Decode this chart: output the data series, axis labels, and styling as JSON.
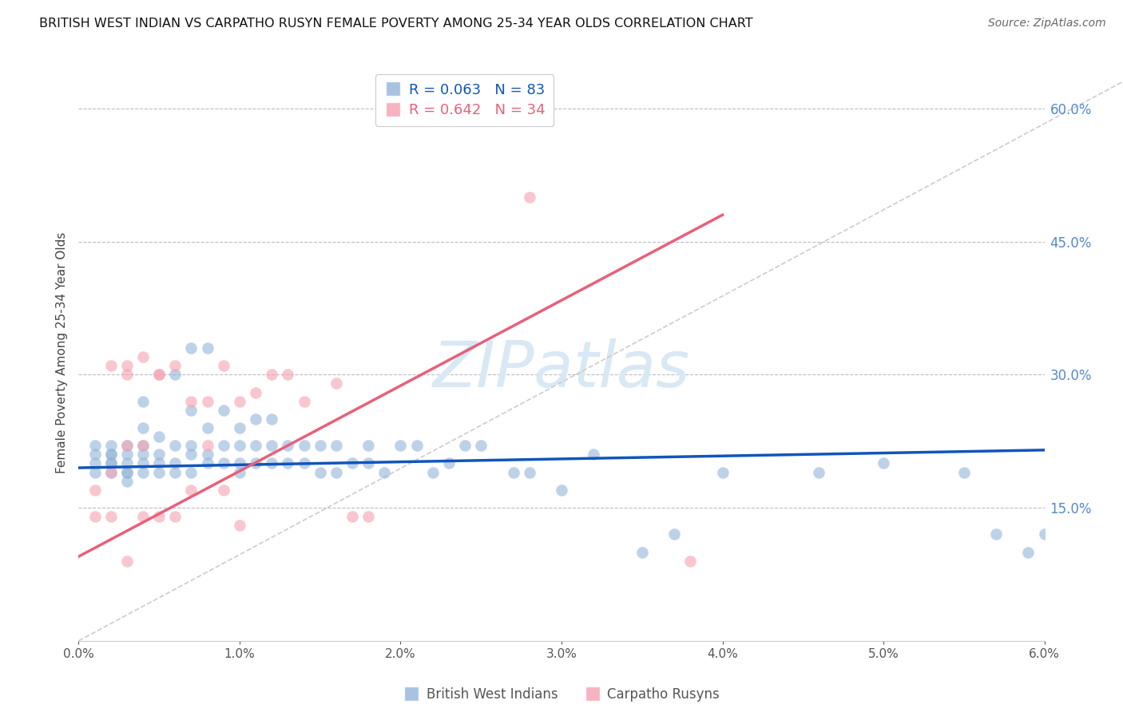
{
  "title": "BRITISH WEST INDIAN VS CARPATHO RUSYN FEMALE POVERTY AMONG 25-34 YEAR OLDS CORRELATION CHART",
  "source": "Source: ZipAtlas.com",
  "ylabel": "Female Poverty Among 25-34 Year Olds",
  "xmin": 0.0,
  "xmax": 0.06,
  "ymin": 0.0,
  "ymax": 0.65,
  "right_yticks": [
    0.15,
    0.3,
    0.45,
    0.6
  ],
  "right_yticklabels": [
    "15.0%",
    "30.0%",
    "45.0%",
    "60.0%"
  ],
  "blue_R": 0.063,
  "blue_N": 83,
  "pink_R": 0.642,
  "pink_N": 34,
  "blue_label": "British West Indians",
  "pink_label": "Carpatho Rusyns",
  "blue_color": "#92B4D9",
  "pink_color": "#F5A0B0",
  "blue_line_color": "#1155BB",
  "pink_line_color": "#E8607A",
  "watermark_color": "#D8E8F5",
  "blue_line_x0": 0.0,
  "blue_line_x1": 0.06,
  "blue_line_y0": 0.195,
  "blue_line_y1": 0.215,
  "pink_line_x0": 0.0,
  "pink_line_x1": 0.04,
  "pink_line_y0": 0.095,
  "pink_line_y1": 0.48,
  "blue_scatter_x": [
    0.001,
    0.001,
    0.001,
    0.001,
    0.002,
    0.002,
    0.002,
    0.002,
    0.002,
    0.002,
    0.003,
    0.003,
    0.003,
    0.003,
    0.003,
    0.003,
    0.004,
    0.004,
    0.004,
    0.004,
    0.004,
    0.004,
    0.005,
    0.005,
    0.005,
    0.005,
    0.006,
    0.006,
    0.006,
    0.006,
    0.007,
    0.007,
    0.007,
    0.007,
    0.007,
    0.008,
    0.008,
    0.008,
    0.008,
    0.009,
    0.009,
    0.009,
    0.01,
    0.01,
    0.01,
    0.01,
    0.011,
    0.011,
    0.011,
    0.012,
    0.012,
    0.012,
    0.013,
    0.013,
    0.014,
    0.014,
    0.015,
    0.015,
    0.016,
    0.016,
    0.017,
    0.018,
    0.018,
    0.019,
    0.02,
    0.021,
    0.022,
    0.023,
    0.024,
    0.025,
    0.027,
    0.028,
    0.03,
    0.032,
    0.035,
    0.037,
    0.04,
    0.046,
    0.05,
    0.055,
    0.057,
    0.059,
    0.06
  ],
  "blue_scatter_y": [
    0.19,
    0.2,
    0.21,
    0.22,
    0.19,
    0.2,
    0.21,
    0.22,
    0.2,
    0.21,
    0.18,
    0.19,
    0.2,
    0.21,
    0.22,
    0.19,
    0.19,
    0.2,
    0.21,
    0.22,
    0.27,
    0.24,
    0.19,
    0.2,
    0.21,
    0.23,
    0.19,
    0.2,
    0.22,
    0.3,
    0.19,
    0.21,
    0.22,
    0.26,
    0.33,
    0.2,
    0.21,
    0.24,
    0.33,
    0.2,
    0.22,
    0.26,
    0.19,
    0.2,
    0.22,
    0.24,
    0.2,
    0.22,
    0.25,
    0.2,
    0.22,
    0.25,
    0.2,
    0.22,
    0.2,
    0.22,
    0.19,
    0.22,
    0.19,
    0.22,
    0.2,
    0.2,
    0.22,
    0.19,
    0.22,
    0.22,
    0.19,
    0.2,
    0.22,
    0.22,
    0.19,
    0.19,
    0.17,
    0.21,
    0.1,
    0.12,
    0.19,
    0.19,
    0.2,
    0.19,
    0.12,
    0.1,
    0.12
  ],
  "pink_scatter_x": [
    0.001,
    0.001,
    0.002,
    0.002,
    0.002,
    0.003,
    0.003,
    0.003,
    0.003,
    0.004,
    0.004,
    0.004,
    0.005,
    0.005,
    0.005,
    0.006,
    0.006,
    0.007,
    0.007,
    0.008,
    0.008,
    0.009,
    0.009,
    0.01,
    0.01,
    0.011,
    0.012,
    0.013,
    0.014,
    0.016,
    0.017,
    0.018,
    0.028,
    0.038
  ],
  "pink_scatter_y": [
    0.17,
    0.14,
    0.19,
    0.31,
    0.14,
    0.31,
    0.3,
    0.22,
    0.09,
    0.32,
    0.14,
    0.22,
    0.3,
    0.3,
    0.14,
    0.31,
    0.14,
    0.27,
    0.17,
    0.27,
    0.22,
    0.31,
    0.17,
    0.27,
    0.13,
    0.28,
    0.3,
    0.3,
    0.27,
    0.29,
    0.14,
    0.14,
    0.5,
    0.09
  ]
}
